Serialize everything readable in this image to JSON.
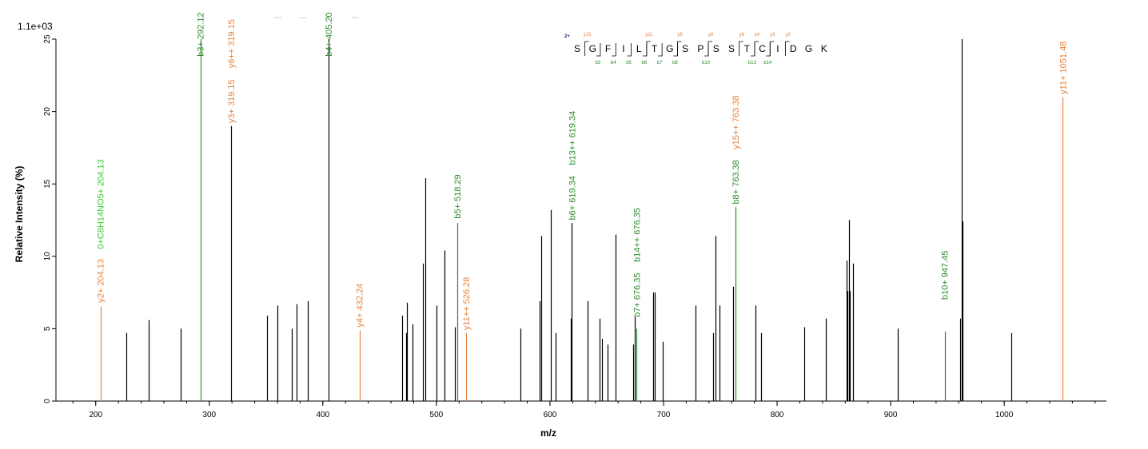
{
  "chart_data": {
    "type": "bar",
    "subtype": "mass-spectrum",
    "xlabel": "m/z",
    "ylabel": "Relative   Intensity (%)",
    "intensity_scale_label": "1.1e+03",
    "xlim": [
      165,
      1090
    ],
    "ylim": [
      0,
      25
    ],
    "x_ticks": [
      200,
      300,
      400,
      500,
      600,
      700,
      800,
      900,
      1000
    ],
    "y_ticks": [
      0,
      5,
      10,
      15,
      20,
      25
    ],
    "colors": {
      "unannotated": "#000000",
      "b_ion": "#2e8b2e",
      "y_ion": "#e8823c",
      "neutral": "#33cc33",
      "precursor_charge": "#1a237e"
    },
    "peaks": [
      {
        "mz": 204.13,
        "intensity": 6.5,
        "type": "y"
      },
      {
        "mz": 227,
        "intensity": 4.7,
        "type": "none"
      },
      {
        "mz": 247,
        "intensity": 5.6,
        "type": "none"
      },
      {
        "mz": 275,
        "intensity": 5.0,
        "type": "none"
      },
      {
        "mz": 292.12,
        "intensity": 25,
        "type": "b"
      },
      {
        "mz": 319.15,
        "intensity": 19,
        "type": "none"
      },
      {
        "mz": 351,
        "intensity": 5.9,
        "type": "none"
      },
      {
        "mz": 360,
        "intensity": 6.6,
        "type": "none"
      },
      {
        "mz": 373,
        "intensity": 5.0,
        "type": "none"
      },
      {
        "mz": 377,
        "intensity": 6.7,
        "type": "none"
      },
      {
        "mz": 387,
        "intensity": 6.9,
        "type": "none"
      },
      {
        "mz": 405.2,
        "intensity": 25,
        "type": "none"
      },
      {
        "mz": 432.24,
        "intensity": 4.9,
        "type": "y"
      },
      {
        "mz": 470,
        "intensity": 5.9,
        "type": "none"
      },
      {
        "mz": 473,
        "intensity": 4.7,
        "type": "none"
      },
      {
        "mz": 474,
        "intensity": 6.8,
        "type": "none"
      },
      {
        "mz": 479,
        "intensity": 5.3,
        "type": "none"
      },
      {
        "mz": 488,
        "intensity": 9.5,
        "type": "none"
      },
      {
        "mz": 490,
        "intensity": 15.4,
        "type": "none"
      },
      {
        "mz": 500,
        "intensity": 6.6,
        "type": "none"
      },
      {
        "mz": 507,
        "intensity": 10.4,
        "type": "none"
      },
      {
        "mz": 516,
        "intensity": 5.1,
        "type": "none"
      },
      {
        "mz": 518.29,
        "intensity": 12.3,
        "type": "b"
      },
      {
        "mz": 526.28,
        "intensity": 4.7,
        "type": "y"
      },
      {
        "mz": 574,
        "intensity": 5.0,
        "type": "none"
      },
      {
        "mz": 591,
        "intensity": 6.9,
        "type": "none"
      },
      {
        "mz": 592,
        "intensity": 11.4,
        "type": "none"
      },
      {
        "mz": 601,
        "intensity": 13.2,
        "type": "none"
      },
      {
        "mz": 605,
        "intensity": 4.7,
        "type": "none"
      },
      {
        "mz": 618,
        "intensity": 5.7,
        "type": "none"
      },
      {
        "mz": 619.34,
        "intensity": 12.3,
        "type": "none"
      },
      {
        "mz": 633,
        "intensity": 6.9,
        "type": "none"
      },
      {
        "mz": 644,
        "intensity": 5.7,
        "type": "none"
      },
      {
        "mz": 646,
        "intensity": 4.3,
        "type": "none"
      },
      {
        "mz": 651,
        "intensity": 3.9,
        "type": "none"
      },
      {
        "mz": 658,
        "intensity": 11.5,
        "type": "none"
      },
      {
        "mz": 673,
        "intensity": 3.9,
        "type": "none"
      },
      {
        "mz": 675,
        "intensity": 5.8,
        "type": "none"
      },
      {
        "mz": 676.35,
        "intensity": 5.0,
        "type": "b"
      },
      {
        "mz": 691,
        "intensity": 7.5,
        "type": "none"
      },
      {
        "mz": 692,
        "intensity": 7.5,
        "type": "none"
      },
      {
        "mz": 699,
        "intensity": 4.1,
        "type": "none"
      },
      {
        "mz": 728,
        "intensity": 6.6,
        "type": "none"
      },
      {
        "mz": 744,
        "intensity": 4.7,
        "type": "none"
      },
      {
        "mz": 746,
        "intensity": 11.4,
        "type": "none"
      },
      {
        "mz": 749,
        "intensity": 6.6,
        "type": "none"
      },
      {
        "mz": 761,
        "intensity": 7.9,
        "type": "none"
      },
      {
        "mz": 763.38,
        "intensity": 13.4,
        "type": "b"
      },
      {
        "mz": 781,
        "intensity": 6.6,
        "type": "none"
      },
      {
        "mz": 786,
        "intensity": 4.7,
        "type": "none"
      },
      {
        "mz": 824,
        "intensity": 5.1,
        "type": "none"
      },
      {
        "mz": 843,
        "intensity": 5.7,
        "type": "none"
      },
      {
        "mz": 861,
        "intensity": 9.7,
        "type": "none"
      },
      {
        "mz": 862,
        "intensity": 7.6,
        "type": "none"
      },
      {
        "mz": 863,
        "intensity": 12.5,
        "type": "none"
      },
      {
        "mz": 864,
        "intensity": 7.6,
        "type": "none"
      },
      {
        "mz": 867,
        "intensity": 9.5,
        "type": "none"
      },
      {
        "mz": 906,
        "intensity": 5.0,
        "type": "none"
      },
      {
        "mz": 947.45,
        "intensity": 4.8,
        "type": "b"
      },
      {
        "mz": 961,
        "intensity": 5.7,
        "type": "none"
      },
      {
        "mz": 962.5,
        "intensity": 25,
        "type": "none"
      },
      {
        "mz": 963.5,
        "intensity": 12.4,
        "type": "none"
      },
      {
        "mz": 1006,
        "intensity": 4.7,
        "type": "none"
      },
      {
        "mz": 1051.48,
        "intensity": 21,
        "type": "y"
      }
    ],
    "labels": [
      {
        "text": "y2+ 204.13",
        "mz": 204.13,
        "base": 6.8,
        "type": "y"
      },
      {
        "text": "0+C8H14NO5+ 204.13",
        "mz": 204.13,
        "base": 10.5,
        "type": "neutral"
      },
      {
        "text": "b3+ 292.12",
        "mz": 292.12,
        "base": 23.8,
        "type": "b"
      },
      {
        "text": "y3+ 319.15",
        "mz": 319.15,
        "base": 19.2,
        "type": "y"
      },
      {
        "text": "y6++ 319.15",
        "mz": 319.15,
        "base": 23.0,
        "type": "y"
      },
      {
        "text": "b4+ 405.20",
        "mz": 405.2,
        "base": 23.8,
        "type": "b"
      },
      {
        "text": "y4+ 432.24",
        "mz": 432.24,
        "base": 5.1,
        "type": "y"
      },
      {
        "text": "b5+ 518.29",
        "mz": 518.29,
        "base": 12.6,
        "type": "b"
      },
      {
        "text": "y11++ 526.28",
        "mz": 526.28,
        "base": 4.9,
        "type": "y"
      },
      {
        "text": "b6+ 619.34",
        "mz": 619.34,
        "base": 12.5,
        "type": "b"
      },
      {
        "text": "b13++ 619.34",
        "mz": 619.34,
        "base": 16.3,
        "type": "b"
      },
      {
        "text": "b7+ 676.35",
        "mz": 676.35,
        "base": 5.8,
        "type": "b"
      },
      {
        "text": "b14++ 676.35",
        "mz": 676.35,
        "base": 9.6,
        "type": "b"
      },
      {
        "text": "b8+ 763.38",
        "mz": 763.38,
        "base": 13.6,
        "type": "b"
      },
      {
        "text": "y15++ 763.38",
        "mz": 763.38,
        "base": 17.4,
        "type": "y"
      },
      {
        "text": "b10+ 947.45",
        "mz": 947.45,
        "base": 7.0,
        "type": "b"
      },
      {
        "text": "y11+ 1051.48",
        "mz": 1051.48,
        "base": 21.2,
        "type": "y"
      }
    ],
    "sequence": {
      "charge": "2+",
      "residues": [
        "S",
        "G",
        "F",
        "I",
        "L",
        "T",
        "G",
        "S",
        "P",
        "S",
        "S",
        "T",
        "C",
        "I",
        "D",
        "G",
        "K"
      ],
      "b_ions": [
        {
          "label": "b3",
          "after": 2
        },
        {
          "label": "b4",
          "after": 3
        },
        {
          "label": "b5",
          "after": 4
        },
        {
          "label": "b6",
          "after": 5
        },
        {
          "label": "b7",
          "after": 6
        },
        {
          "label": "b8",
          "after": 7
        },
        {
          "label": "b10",
          "after": 9
        },
        {
          "label": "b13",
          "after": 12
        },
        {
          "label": "b14",
          "after": 13
        }
      ],
      "y_ions": [
        {
          "label": "y15",
          "after": 1
        },
        {
          "label": "y11",
          "after": 5
        },
        {
          "label": "y9",
          "after": 7
        },
        {
          "label": "y8",
          "after": 9
        },
        {
          "label": "y6",
          "after": 11
        },
        {
          "label": "y4",
          "after": 12
        },
        {
          "label": "y3",
          "after": 13
        },
        {
          "label": "y2",
          "after": 14
        }
      ]
    }
  }
}
